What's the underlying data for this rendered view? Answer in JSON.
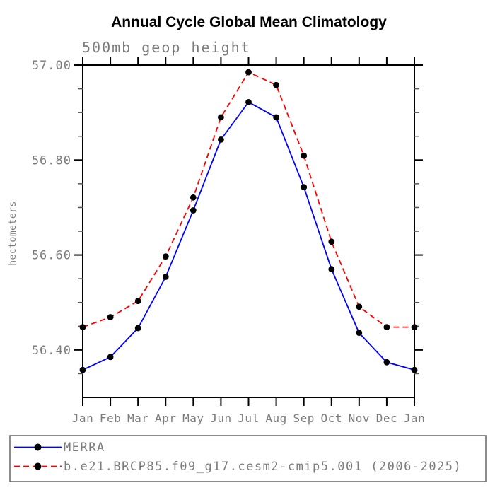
{
  "title": "Annual Cycle Global Mean Climatology",
  "subtitle": "500mb geop height",
  "colors": {
    "background": "#ffffff",
    "axis": "#000000",
    "minor_tick": "#555555",
    "gray_text": "#7b7b7b",
    "legend_border": "#666666",
    "marker": "#000000",
    "series_blue": "#0000ff",
    "series_red": "#ff0000"
  },
  "chart_data": {
    "type": "line",
    "title": "Annual Cycle Global Mean Climatology",
    "subtitle": "500mb geop height",
    "xlabel": "",
    "ylabel": "hectometers",
    "categories": [
      "Jan",
      "Feb",
      "Mar",
      "Apr",
      "May",
      "Jun",
      "Jul",
      "Aug",
      "Sep",
      "Oct",
      "Nov",
      "Dec",
      "Jan"
    ],
    "ylim": [
      56.3,
      57.0
    ],
    "yticks_major": [
      57.0,
      56.8,
      56.6,
      56.4
    ],
    "ytick_labels": [
      "57.00",
      "56.80",
      "56.60",
      "56.40"
    ],
    "ytick_minor_step": 0.05,
    "grid": false,
    "legend_position": "bottom",
    "series": [
      {
        "name": "MERRA",
        "color": "#0000ff",
        "style": "solid",
        "marker": "black-dot",
        "values": [
          56.358,
          56.385,
          56.446,
          56.554,
          56.694,
          56.843,
          56.922,
          56.89,
          56.743,
          56.57,
          56.436,
          56.374,
          56.358
        ]
      },
      {
        "name": "b.e21.BRCP85.f09_g17.cesm2-cmip5.001 (2006-2025)",
        "color": "#ff0000",
        "style": "dashed",
        "marker": "black-dot",
        "values": [
          56.448,
          56.469,
          56.503,
          56.597,
          56.721,
          56.89,
          56.985,
          56.958,
          56.809,
          56.628,
          56.491,
          56.448,
          56.448
        ]
      }
    ]
  }
}
